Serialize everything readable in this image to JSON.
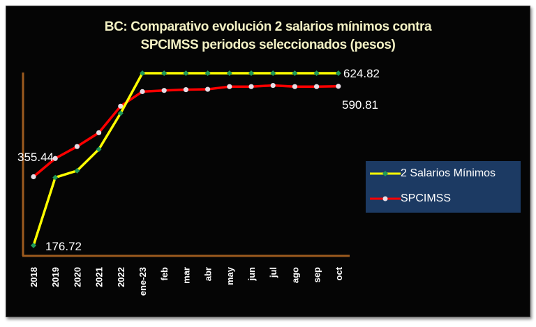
{
  "chart_data": {
    "type": "line",
    "title": "BC: Comparativo evolución 2 salarios mínimos contra SPCIMSS periodos seleccionados (pesos)",
    "title_lines": [
      "BC: Comparativo evolución 2 salarios mínimos contra",
      "SPCIMSS periodos seleccionados (pesos)"
    ],
    "categories": [
      "2018",
      "2019",
      "2020",
      "2021",
      "2022",
      "ene-23",
      "feb",
      "mar",
      "abr",
      "may",
      "jun",
      "jul",
      "ago",
      "sep",
      "oct"
    ],
    "series": [
      {
        "name": "2 Salarios Mínimos",
        "color": "#ffff00",
        "marker_color": "#1f9a5a",
        "marker": "diamond",
        "values": [
          176.72,
          353.44,
          371.12,
          426.78,
          520.68,
          624.82,
          624.82,
          624.82,
          624.82,
          624.82,
          624.82,
          624.82,
          624.82,
          624.82,
          624.82
        ]
      },
      {
        "name": "SPCIMSS",
        "color": "#ff0000",
        "marker_color": "#e6dde6",
        "marker": "circle",
        "values": [
          355.44,
          403,
          434,
          470,
          539,
          577,
          580,
          582,
          583,
          590,
          590,
          593,
          590,
          590,
          590.81
        ]
      }
    ],
    "data_labels": [
      "176.72",
      "355.44",
      "624.82",
      "590.81"
    ],
    "ylim": [
      176.72,
      624.82
    ],
    "grid": false,
    "legend_position": "right",
    "axis_color": "#9c5a1e"
  }
}
